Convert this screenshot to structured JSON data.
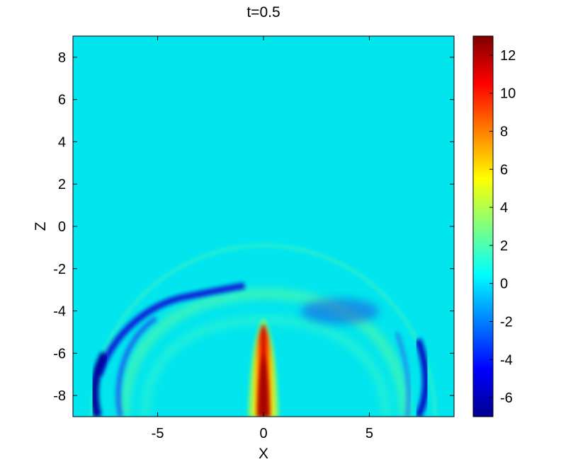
{
  "chart_data": {
    "type": "heatmap",
    "title": "t=0.5",
    "xlabel": "X",
    "ylabel": "Z",
    "xlim": [
      -9,
      9
    ],
    "ylim": [
      -9,
      9
    ],
    "x_ticks": [
      -5,
      0,
      5
    ],
    "y_ticks": [
      8,
      6,
      4,
      2,
      0,
      -2,
      -4,
      -6,
      -8
    ],
    "colorbar": {
      "range": [
        -7,
        13
      ],
      "ticks": [
        12,
        10,
        8,
        6,
        4,
        2,
        0,
        -2,
        -4,
        -6
      ],
      "colormap": "jet"
    },
    "background_value": 0,
    "features": [
      {
        "name": "central vertical jet",
        "x_center": 0,
        "z_top": -4.4,
        "z_bottom": -9,
        "peak_value": 13
      },
      {
        "name": "outer faint wavefront arc",
        "center": [
          0,
          -9
        ],
        "radius": 8.1,
        "value": 1
      },
      {
        "name": "negative band upper-left",
        "value": -6,
        "z_range": [
          -3,
          -5
        ],
        "x_range": [
          -7,
          -1.5
        ]
      },
      {
        "name": "negative band left edge",
        "value": -6,
        "x": -7.6,
        "z_range": [
          -6,
          -9
        ]
      },
      {
        "name": "negative band right edge",
        "value": -6,
        "x": 7.2,
        "z_range": [
          -6,
          -9
        ]
      },
      {
        "name": "diffuse negative patch upper-right",
        "value": -3,
        "x_range": [
          2,
          5
        ],
        "z_range": [
          -3.5,
          -5
        ]
      }
    ]
  },
  "colors": {
    "background_field": "#00e5ee"
  }
}
